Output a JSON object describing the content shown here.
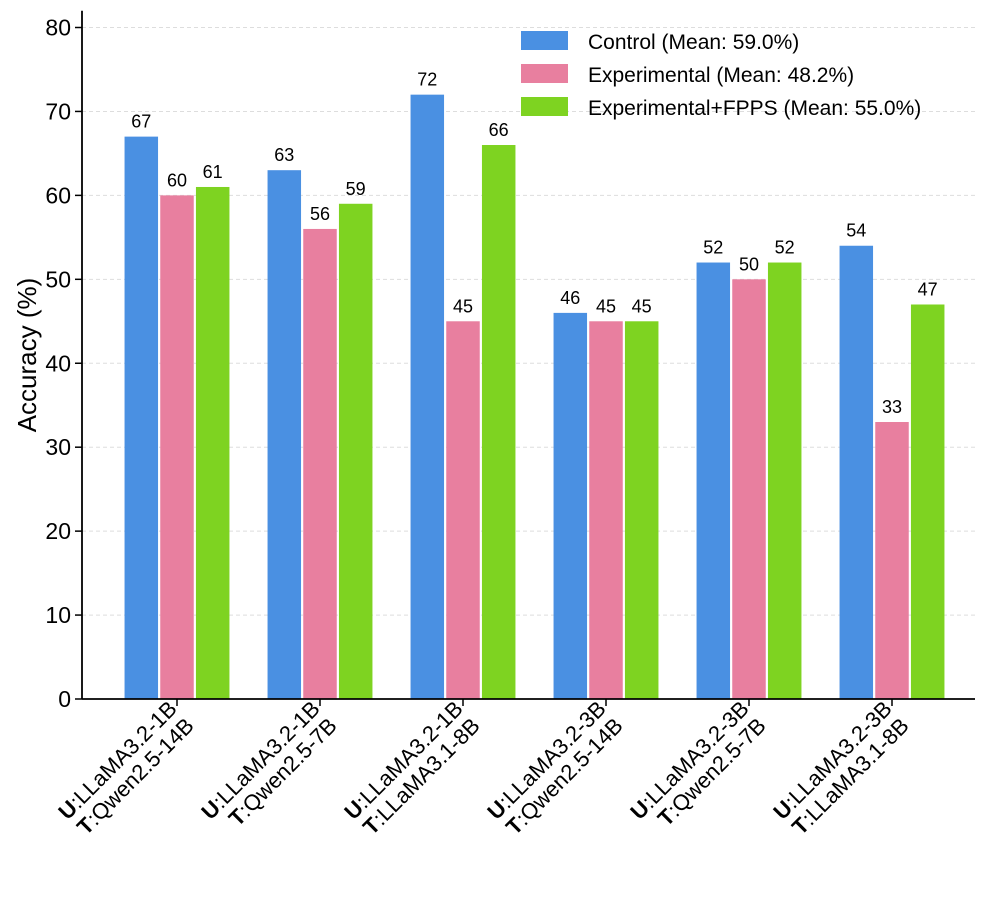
{
  "chart_data": {
    "type": "bar",
    "title": "",
    "xlabel": "",
    "ylabel": "Accuracy (%)",
    "ylim": [
      0,
      82
    ],
    "yticks": [
      0,
      10,
      20,
      30,
      40,
      50,
      60,
      70,
      80
    ],
    "grid": true,
    "legend_position": "top-right",
    "categories": [
      {
        "u_prefix": "U",
        "u_model": ":LLaMA3.2-1B",
        "t_prefix": "T",
        "t_model": ":Qwen2.5-14B"
      },
      {
        "u_prefix": "U",
        "u_model": ":LLaMA3.2-1B",
        "t_prefix": "T",
        "t_model": ":Qwen2.5-7B"
      },
      {
        "u_prefix": "U",
        "u_model": ":LLaMA3.2-1B",
        "t_prefix": "T",
        "t_model": ":LLaMA3.1-8B"
      },
      {
        "u_prefix": "U",
        "u_model": ":LLaMA3.2-3B",
        "t_prefix": "T",
        "t_model": ":Qwen2.5-14B"
      },
      {
        "u_prefix": "U",
        "u_model": ":LLaMA3.2-3B",
        "t_prefix": "T",
        "t_model": ":Qwen2.5-7B"
      },
      {
        "u_prefix": "U",
        "u_model": ":LLaMA3.2-3B",
        "t_prefix": "T",
        "t_model": ":LLaMA3.1-8B"
      }
    ],
    "series": [
      {
        "name": "Control (Mean: 59.0%)",
        "color": "#4a90e2",
        "values": [
          67,
          63,
          72,
          46,
          52,
          54
        ]
      },
      {
        "name": "Experimental (Mean: 48.2%)",
        "color": "#e87f9f",
        "values": [
          60,
          56,
          45,
          45,
          50,
          33
        ]
      },
      {
        "name": "Experimental+FPPS (Mean: 55.0%)",
        "color": "#7ed321",
        "values": [
          61,
          59,
          66,
          45,
          52,
          47
        ]
      }
    ]
  }
}
